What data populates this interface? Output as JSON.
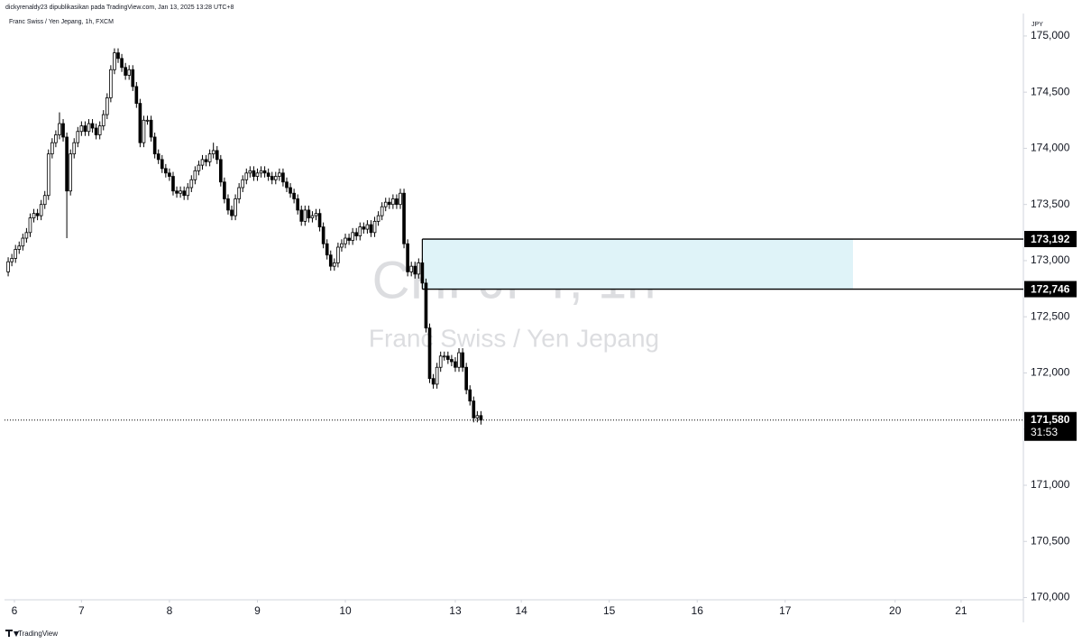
{
  "header": {
    "publisher": "dickyrenaldy23 dipublikasikan pada TradingView.com, Jan 13, 2025 13:28 UTC+8",
    "symbol_line": "Franc Swiss / Yen Jepang, 1h, FXCM",
    "footer": "TradingView"
  },
  "chart_data": {
    "type": "candlestick",
    "watermark": "CHFJPY, 1h",
    "watermark_sub": "Franc Swiss / Yen Jepang",
    "currency": "JPY",
    "up_color": "#ffffff",
    "down_color": "#000000",
    "x": [
      0,
      1,
      2,
      3,
      4,
      5,
      6,
      7,
      8,
      9,
      10,
      11,
      12,
      13,
      14,
      15,
      16,
      17,
      18,
      19,
      20,
      21,
      22,
      23,
      24,
      25,
      26,
      27,
      28,
      29,
      30,
      31,
      32,
      33,
      34,
      35,
      36,
      37,
      38,
      39,
      40,
      41,
      42,
      43,
      44,
      45,
      46,
      47,
      48,
      49,
      50,
      51,
      52,
      53,
      54,
      55,
      56,
      57,
      58,
      59,
      60,
      61,
      62,
      63,
      64,
      65,
      66,
      67,
      68,
      69,
      70,
      71,
      72,
      73,
      74,
      75,
      76,
      77,
      78,
      79,
      80,
      81,
      82,
      83,
      84,
      85,
      86,
      87,
      88,
      89,
      90,
      91,
      92,
      93,
      94,
      95,
      96,
      97,
      98,
      99,
      100,
      101,
      102,
      103,
      104,
      105,
      106,
      107,
      108,
      109,
      110,
      111,
      112,
      113,
      114,
      115,
      116,
      117,
      118,
      119,
      120,
      121,
      122,
      123,
      124,
      125,
      126,
      127,
      128,
      129
    ],
    "open": [
      172.9,
      172.99,
      173.02,
      173.1,
      173.13,
      173.2,
      173.25,
      173.38,
      173.42,
      173.4,
      173.5,
      173.58,
      173.95,
      174.05,
      174.12,
      174.22,
      174.1,
      173.62,
      173.95,
      174.05,
      174.15,
      174.2,
      174.15,
      174.22,
      174.18,
      174.12,
      174.2,
      174.3,
      174.45,
      174.7,
      174.85,
      174.8,
      174.72,
      174.65,
      174.7,
      174.55,
      174.4,
      174.05,
      174.25,
      174.25,
      174.1,
      173.95,
      173.9,
      173.82,
      173.78,
      173.75,
      173.62,
      173.6,
      173.62,
      173.58,
      173.65,
      173.72,
      173.8,
      173.85,
      173.9,
      173.88,
      173.95,
      173.98,
      173.9,
      173.7,
      173.55,
      173.45,
      173.4,
      173.55,
      173.65,
      173.72,
      173.78,
      173.8,
      173.75,
      173.78,
      173.8,
      173.78,
      173.75,
      173.72,
      173.75,
      173.78,
      173.7,
      173.65,
      173.6,
      173.55,
      173.45,
      173.35,
      173.45,
      173.38,
      173.4,
      173.42,
      173.3,
      173.15,
      173.05,
      172.95,
      172.98,
      173.12,
      173.15,
      173.2,
      173.18,
      173.25,
      173.22,
      173.3,
      173.28,
      173.32,
      173.25,
      173.35,
      173.4,
      173.48,
      173.52,
      173.5,
      173.55,
      173.5,
      173.6,
      173.15,
      172.9,
      172.95,
      172.88,
      172.98,
      172.8,
      172.4,
      171.95,
      171.9,
      172.05,
      172.15,
      172.15,
      172.12,
      172.1,
      172.05,
      172.18,
      172.05,
      171.85,
      171.75,
      171.6,
      171.62
    ],
    "high": [
      173.03,
      173.06,
      173.14,
      173.17,
      173.24,
      173.29,
      173.42,
      173.46,
      173.46,
      173.54,
      173.62,
      173.99,
      174.09,
      174.16,
      174.32,
      174.26,
      174.14,
      173.99,
      174.09,
      174.19,
      174.24,
      174.24,
      174.26,
      174.26,
      174.22,
      174.24,
      174.34,
      174.49,
      174.74,
      174.89,
      174.89,
      174.84,
      174.76,
      174.74,
      174.74,
      174.59,
      174.44,
      174.29,
      174.29,
      174.29,
      174.14,
      173.99,
      173.94,
      173.86,
      173.82,
      173.79,
      173.66,
      173.66,
      173.66,
      173.69,
      173.76,
      173.84,
      173.89,
      173.94,
      173.94,
      173.99,
      174.05,
      174.02,
      173.94,
      173.74,
      173.59,
      173.49,
      173.59,
      173.69,
      173.76,
      173.82,
      173.84,
      173.84,
      173.82,
      173.84,
      173.84,
      173.82,
      173.79,
      173.79,
      173.82,
      173.82,
      173.74,
      173.69,
      173.64,
      173.59,
      173.49,
      173.49,
      173.49,
      173.44,
      173.46,
      173.46,
      173.34,
      173.19,
      173.09,
      173.02,
      173.16,
      173.19,
      173.24,
      173.24,
      173.29,
      173.29,
      173.34,
      173.34,
      173.36,
      173.36,
      173.39,
      173.44,
      173.52,
      173.56,
      173.56,
      173.59,
      173.59,
      173.64,
      173.64,
      173.19,
      172.99,
      172.99,
      173.02,
      173.02,
      172.84,
      172.44,
      171.99,
      172.09,
      172.19,
      172.19,
      172.19,
      172.16,
      172.14,
      172.22,
      172.22,
      172.09,
      171.89,
      171.79,
      171.66,
      171.66
    ],
    "low": [
      172.86,
      172.95,
      172.98,
      173.06,
      173.09,
      173.16,
      173.21,
      173.34,
      173.36,
      173.36,
      173.46,
      173.54,
      173.91,
      174.01,
      174.08,
      174.06,
      173.2,
      173.58,
      173.91,
      174.01,
      174.11,
      174.11,
      174.11,
      174.14,
      174.08,
      174.08,
      174.16,
      174.26,
      174.41,
      174.66,
      174.76,
      174.68,
      174.61,
      174.61,
      174.51,
      174.36,
      174.01,
      174.01,
      174.21,
      174.06,
      173.91,
      173.86,
      173.78,
      173.74,
      173.71,
      173.58,
      173.56,
      173.56,
      173.54,
      173.54,
      173.61,
      173.68,
      173.76,
      173.81,
      173.84,
      173.84,
      173.91,
      173.86,
      173.66,
      173.51,
      173.41,
      173.36,
      173.36,
      173.51,
      173.61,
      173.68,
      173.74,
      173.71,
      173.71,
      173.74,
      173.74,
      173.71,
      173.68,
      173.68,
      173.71,
      173.66,
      173.61,
      173.56,
      173.51,
      173.41,
      173.31,
      173.31,
      173.34,
      173.34,
      173.36,
      173.26,
      173.11,
      173.01,
      172.91,
      172.91,
      172.94,
      173.08,
      173.11,
      173.14,
      173.14,
      173.18,
      173.18,
      173.24,
      173.24,
      173.21,
      173.21,
      173.31,
      173.36,
      173.44,
      173.46,
      173.46,
      173.46,
      173.46,
      173.11,
      172.86,
      172.86,
      172.84,
      172.84,
      172.76,
      172.36,
      171.91,
      171.86,
      171.86,
      172.01,
      172.11,
      172.08,
      172.06,
      172.01,
      172.01,
      172.01,
      171.81,
      171.71,
      171.56,
      171.56,
      171.54
    ],
    "close": [
      172.99,
      173.02,
      173.1,
      173.13,
      173.2,
      173.25,
      173.38,
      173.42,
      173.4,
      173.5,
      173.58,
      173.95,
      174.05,
      174.12,
      174.22,
      174.1,
      173.62,
      173.95,
      174.05,
      174.15,
      174.2,
      174.15,
      174.22,
      174.18,
      174.12,
      174.2,
      174.3,
      174.45,
      174.7,
      174.85,
      174.8,
      174.72,
      174.65,
      174.7,
      174.55,
      174.4,
      174.05,
      174.25,
      174.25,
      174.1,
      173.95,
      173.9,
      173.82,
      173.78,
      173.75,
      173.62,
      173.6,
      173.62,
      173.58,
      173.65,
      173.72,
      173.8,
      173.85,
      173.9,
      173.88,
      173.95,
      173.98,
      173.9,
      173.7,
      173.55,
      173.45,
      173.4,
      173.55,
      173.65,
      173.72,
      173.78,
      173.8,
      173.75,
      173.78,
      173.8,
      173.78,
      173.75,
      173.72,
      173.75,
      173.78,
      173.7,
      173.65,
      173.6,
      173.55,
      173.45,
      173.35,
      173.45,
      173.38,
      173.4,
      173.42,
      173.3,
      173.15,
      173.05,
      172.95,
      172.98,
      173.12,
      173.15,
      173.2,
      173.18,
      173.25,
      173.22,
      173.3,
      173.28,
      173.32,
      173.25,
      173.35,
      173.4,
      173.48,
      173.52,
      173.5,
      173.55,
      173.5,
      173.6,
      173.15,
      172.9,
      172.95,
      172.88,
      172.98,
      172.8,
      172.4,
      171.95,
      171.9,
      172.05,
      172.15,
      172.15,
      172.12,
      172.1,
      172.05,
      172.18,
      172.05,
      171.85,
      171.75,
      171.6,
      171.62,
      171.58
    ],
    "ylim": [
      169.98,
      175.2
    ],
    "yticks": [
      {
        "value": 170,
        "label": "170,000"
      },
      {
        "value": 170.5,
        "label": "170,500"
      },
      {
        "value": 171,
        "label": "171,000"
      },
      {
        "value": 171.5,
        "label": "171,500"
      },
      {
        "value": 172,
        "label": "172,000"
      },
      {
        "value": 172.5,
        "label": "172,500"
      },
      {
        "value": 173,
        "label": "173,000"
      },
      {
        "value": 173.5,
        "label": "173,500"
      },
      {
        "value": 174,
        "label": "174,000"
      },
      {
        "value": 174.5,
        "label": "174,500"
      },
      {
        "value": 175,
        "label": "175,000"
      }
    ],
    "xlim": [
      -1,
      277
    ],
    "xticks": [
      {
        "value": 1.7,
        "label": "6"
      },
      {
        "value": 20,
        "label": "7"
      },
      {
        "value": 44,
        "label": "8"
      },
      {
        "value": 68,
        "label": "9"
      },
      {
        "value": 92,
        "label": "10"
      },
      {
        "value": 122,
        "label": "13"
      },
      {
        "value": 140,
        "label": "14"
      },
      {
        "value": 164,
        "label": "15"
      },
      {
        "value": 188,
        "label": "16"
      },
      {
        "value": 212,
        "label": "17"
      },
      {
        "value": 242,
        "label": "20"
      },
      {
        "value": 260,
        "label": "21"
      }
    ],
    "zone": {
      "values": [
        173.192,
        172.746
      ],
      "value_labels": [
        "173,192",
        "172,746"
      ],
      "x_start": 113,
      "x_end": 230.5,
      "color": "#dff3f8"
    },
    "last_price": {
      "value": 171.58,
      "label": "171,580",
      "countdown": "31:53"
    }
  }
}
